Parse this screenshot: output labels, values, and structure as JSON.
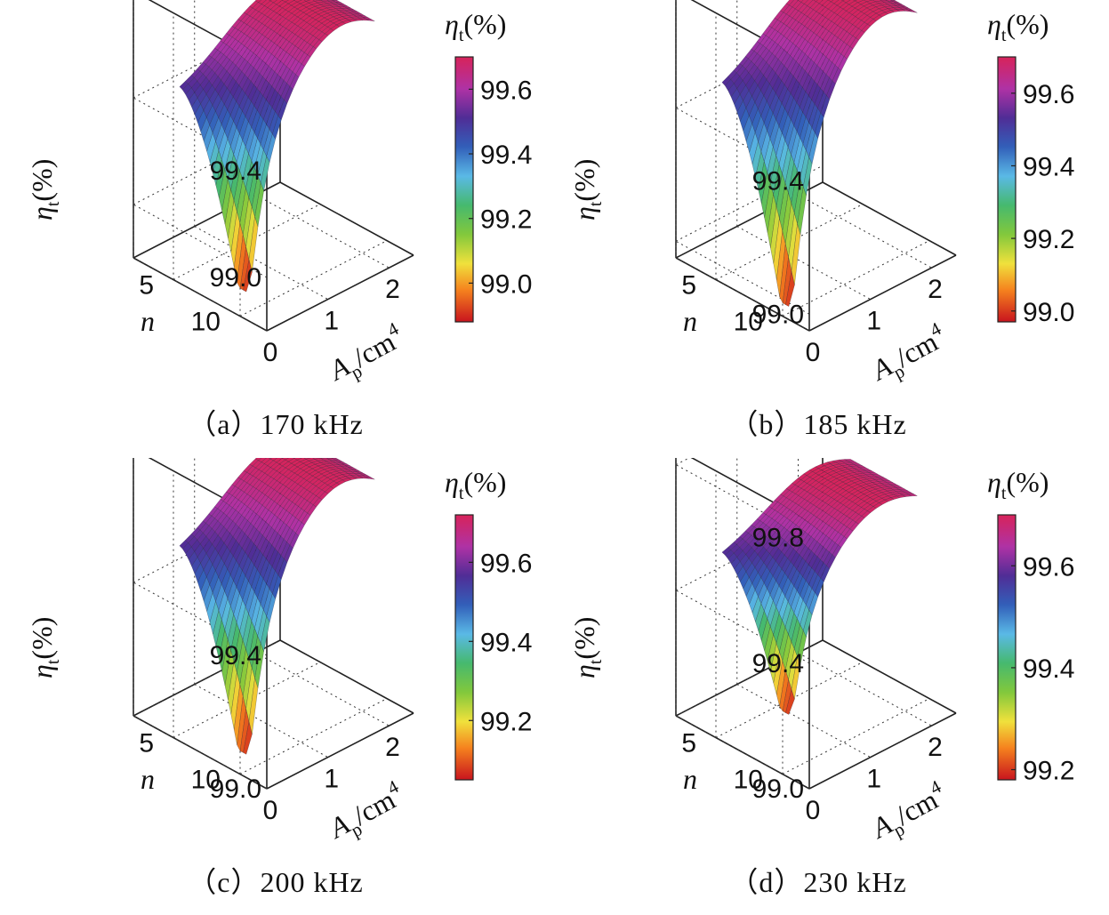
{
  "chart_data": [
    {
      "type": "surface3d",
      "caption": "（a）170 kHz",
      "frequency": "170 kHz",
      "xlabel_base": "A",
      "xlabel_sub": "p",
      "xlabel_unit": "/cm",
      "xlabel_sup": "4",
      "ylabel": "n",
      "zlabel_base": "η",
      "zlabel_sub": "t",
      "zlabel_unit": "(%)",
      "colorbar_title_base": "η",
      "colorbar_title_sub": "t",
      "colorbar_title_unit": "(%)",
      "x_ticks": [
        "0",
        "1",
        "2"
      ],
      "x_tick_values": [
        0,
        1,
        2
      ],
      "xlim": [
        0,
        2.4
      ],
      "y_ticks": [
        "5",
        "10"
      ],
      "y_tick_values": [
        5,
        10
      ],
      "ylim": [
        2,
        12
      ],
      "z_ticks": [
        "99.0",
        "99.4"
      ],
      "z_tick_values": [
        99.0,
        99.4
      ],
      "zlim": [
        98.8,
        99.8
      ],
      "colorbar_ticks": [
        "99.0",
        "99.2",
        "99.4",
        "99.6"
      ],
      "colorbar_tick_values": [
        99.0,
        99.2,
        99.4,
        99.6
      ],
      "colorbar_range": [
        98.88,
        99.7
      ],
      "surface_min": 98.88,
      "surface_max": 99.7
    },
    {
      "type": "surface3d",
      "caption": "（b）185 kHz",
      "frequency": "185 kHz",
      "xlabel_base": "A",
      "xlabel_sub": "p",
      "xlabel_unit": "/cm",
      "xlabel_sup": "4",
      "ylabel": "n",
      "zlabel_base": "η",
      "zlabel_sub": "t",
      "zlabel_unit": "(%)",
      "colorbar_title_base": "η",
      "colorbar_title_sub": "t",
      "colorbar_title_unit": "(%)",
      "x_ticks": [
        "0",
        "1",
        "2"
      ],
      "x_tick_values": [
        0,
        1,
        2
      ],
      "xlim": [
        0,
        2.4
      ],
      "y_ticks": [
        "5",
        "10"
      ],
      "y_tick_values": [
        5,
        10
      ],
      "ylim": [
        2,
        12
      ],
      "z_ticks": [
        "99.0",
        "99.4"
      ],
      "z_tick_values": [
        99.0,
        99.4
      ],
      "zlim": [
        98.95,
        99.75
      ],
      "colorbar_ticks": [
        "99.0",
        "99.2",
        "99.4",
        "99.6"
      ],
      "colorbar_tick_values": [
        99.0,
        99.2,
        99.4,
        99.6
      ],
      "colorbar_range": [
        98.97,
        99.7
      ],
      "surface_min": 98.97,
      "surface_max": 99.7
    },
    {
      "type": "surface3d",
      "caption": "（c）200 kHz",
      "frequency": "200 kHz",
      "xlabel_base": "A",
      "xlabel_sub": "p",
      "xlabel_unit": "/cm",
      "xlabel_sup": "4",
      "ylabel": "n",
      "zlabel_base": "η",
      "zlabel_sub": "t",
      "zlabel_unit": "(%)",
      "colorbar_title_base": "η",
      "colorbar_title_sub": "t",
      "colorbar_title_unit": "(%)",
      "x_ticks": [
        "0",
        "1",
        "2"
      ],
      "x_tick_values": [
        0,
        1,
        2
      ],
      "xlim": [
        0,
        2.4
      ],
      "y_ticks": [
        "5",
        "10"
      ],
      "y_tick_values": [
        5,
        10
      ],
      "ylim": [
        2,
        12
      ],
      "z_ticks": [
        "99.0",
        "99.4"
      ],
      "z_tick_values": [
        99.0,
        99.4
      ],
      "zlim": [
        99.0,
        99.8
      ],
      "colorbar_ticks": [
        "99.2",
        "99.4",
        "99.6"
      ],
      "colorbar_tick_values": [
        99.2,
        99.4,
        99.6
      ],
      "colorbar_range": [
        99.05,
        99.72
      ],
      "surface_min": 99.05,
      "surface_max": 99.72
    },
    {
      "type": "surface3d",
      "caption": "（d）230 kHz",
      "frequency": "230 kHz",
      "xlabel_base": "A",
      "xlabel_sub": "p",
      "xlabel_unit": "/cm",
      "xlabel_sup": "4",
      "ylabel": "n",
      "zlabel_base": "η",
      "zlabel_sub": "t",
      "zlabel_unit": "(%)",
      "colorbar_title_base": "η",
      "colorbar_title_sub": "t",
      "colorbar_title_unit": "(%)",
      "x_ticks": [
        "0",
        "1",
        "2"
      ],
      "x_tick_values": [
        0,
        1,
        2
      ],
      "xlim": [
        0,
        2.4
      ],
      "y_ticks": [
        "5",
        "10"
      ],
      "y_tick_values": [
        5,
        10
      ],
      "ylim": [
        2,
        12
      ],
      "z_ticks": [
        "99.0",
        "99.4",
        "99.8"
      ],
      "z_tick_values": [
        99.0,
        99.4,
        99.8
      ],
      "zlim": [
        99.0,
        99.85
      ],
      "colorbar_ticks": [
        "99.2",
        "99.4",
        "99.6"
      ],
      "colorbar_tick_values": [
        99.2,
        99.4,
        99.6
      ],
      "colorbar_range": [
        99.18,
        99.7
      ],
      "surface_min": 99.18,
      "surface_max": 99.7
    }
  ]
}
